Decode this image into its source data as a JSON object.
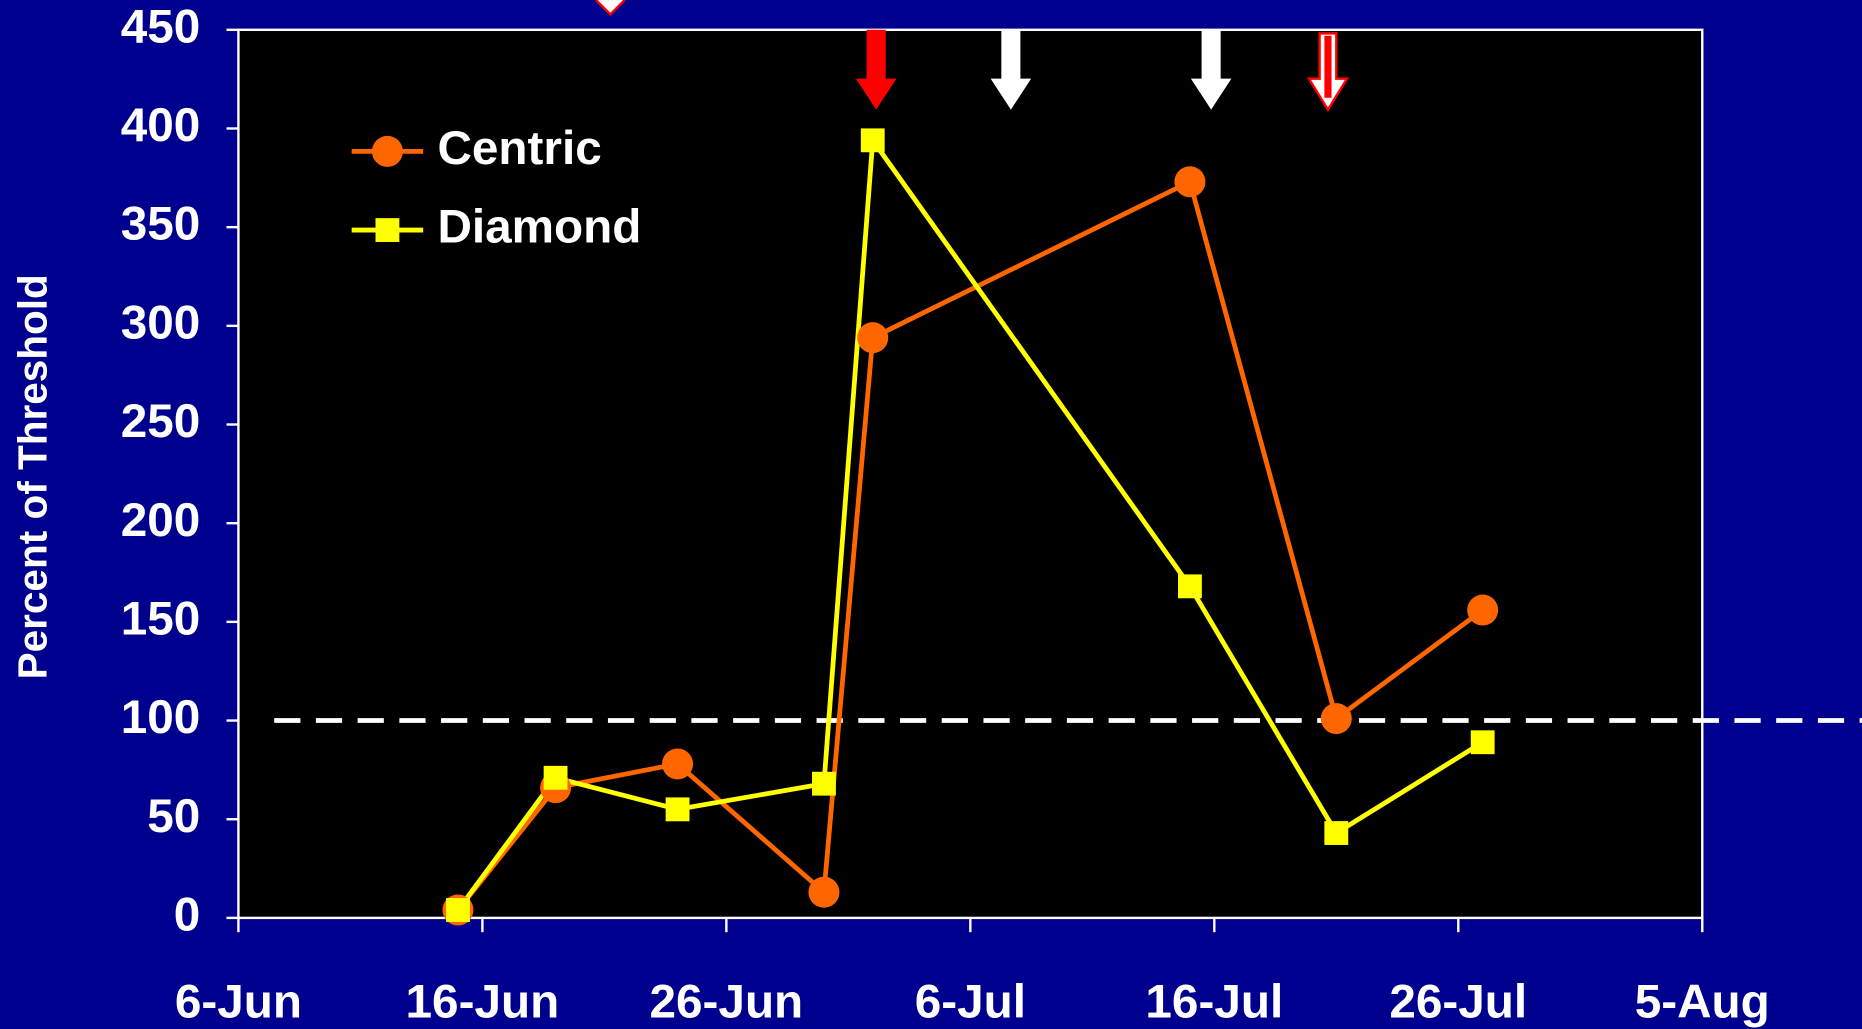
{
  "chart_data": {
    "type": "line",
    "y_label": "Percent of Threshold",
    "x": [
      "15-Jun",
      "19-Jun",
      "24-Jun",
      "30-Jun",
      "2-Jul",
      "15-Jul",
      "21-Jul",
      "27-Jul"
    ],
    "series": [
      {
        "name": "Centric",
        "color": "#ff6600",
        "marker": "circle",
        "values": [
          4,
          66,
          78,
          13,
          294,
          373,
          101,
          156
        ]
      },
      {
        "name": "Diamond",
        "color": "#ffff00",
        "marker": "square",
        "values": [
          4,
          71,
          55,
          68,
          394,
          168,
          43,
          89
        ]
      }
    ],
    "xlim": [
      "6-Jun",
      "5-Aug"
    ],
    "xticks": [
      "6-Jun",
      "16-Jun",
      "26-Jun",
      "6-Jul",
      "16-Jul",
      "26-Jul",
      "5-Aug"
    ],
    "ylim": [
      0,
      450
    ],
    "yticks": [
      0,
      50,
      100,
      150,
      200,
      250,
      300,
      350,
      400,
      450
    ],
    "reference_line": 100,
    "legend": "upper left"
  }
}
